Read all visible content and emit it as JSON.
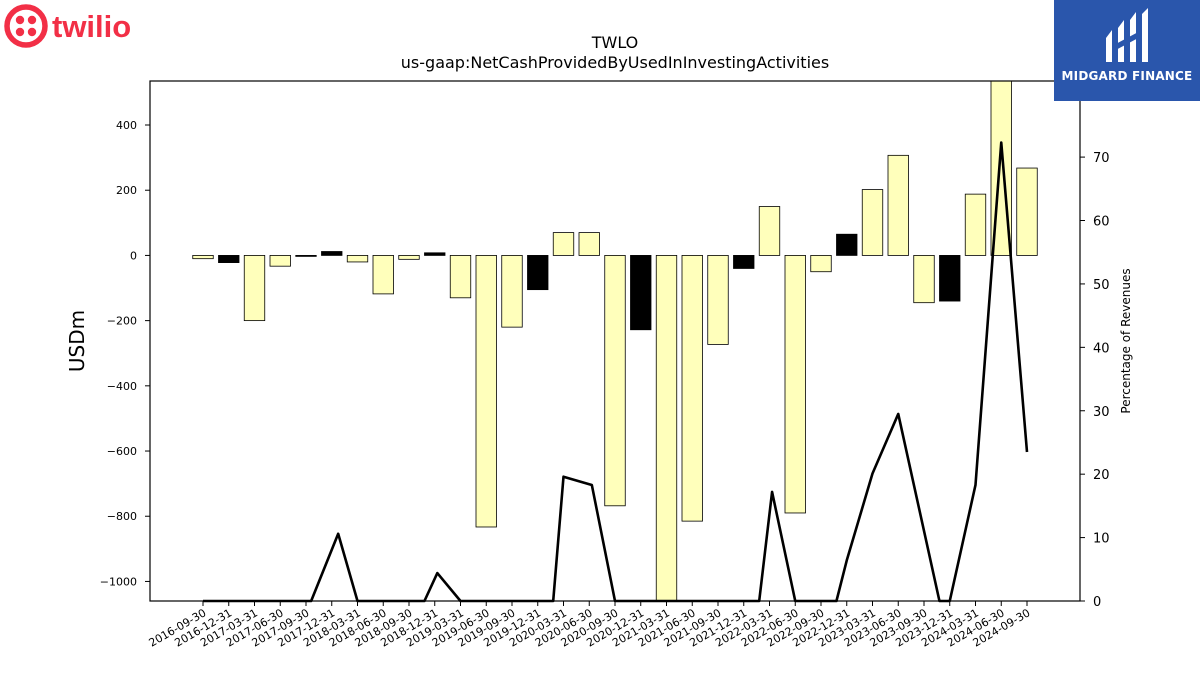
{
  "branding": {
    "left_logo_text": "twilio",
    "left_logo_color": "#f22f46",
    "right_logo_text": "MIDGARD FINANCE",
    "right_logo_bg": "#2a56ac"
  },
  "chart_data": {
    "type": "bar",
    "title": "TWLO",
    "subtitle": "us-gaap:NetCashProvidedByUsedInInvestingActivities",
    "ylabel": "USDm",
    "y2label": "Percentage of Revenues",
    "ylim": [
      -1060,
      535
    ],
    "y2lim": [
      0,
      82
    ],
    "yticks": [
      400,
      200,
      0,
      -200,
      -400,
      -600,
      -800,
      -1000
    ],
    "y2ticks": [
      0,
      10,
      20,
      30,
      40,
      50,
      60,
      70
    ],
    "ytick_labels": [
      "400",
      "200",
      "0",
      "−200",
      "−400",
      "−600",
      "−800",
      "−1000"
    ],
    "y2tick_labels": [
      "0",
      "10",
      "20",
      "30",
      "40",
      "50",
      "60",
      "70"
    ],
    "categories": [
      "2016-09-30",
      "2016-12-31",
      "2017-03-31",
      "2017-06-30",
      "2017-09-30",
      "2017-12-31",
      "2018-03-31",
      "2018-06-30",
      "2018-09-30",
      "2018-12-31",
      "2019-03-31",
      "2019-06-30",
      "2019-09-30",
      "2019-12-31",
      "2020-03-31",
      "2020-06-30",
      "2020-09-30",
      "2020-12-31",
      "2021-03-31",
      "2021-06-30",
      "2021-09-30",
      "2021-12-31",
      "2022-03-31",
      "2022-06-30",
      "2022-09-30",
      "2022-12-31",
      "2023-03-31",
      "2023-06-30",
      "2023-09-30",
      "2023-12-31",
      "2024-03-31",
      "2024-06-30",
      "2024-09-30"
    ],
    "series": [
      {
        "kind": "bar",
        "values": [
          -10,
          -22,
          -200,
          -33,
          -3,
          12,
          -20,
          -118,
          -12,
          8,
          -130,
          -833,
          -220,
          -105,
          70,
          70,
          -768,
          -228,
          -1080,
          -815,
          -273,
          -40,
          150,
          -790,
          -50,
          65,
          202,
          307,
          -145,
          -140,
          188,
          560,
          268
        ],
        "colors": [
          "yellow",
          "black",
          "yellow",
          "yellow",
          "black",
          "black",
          "yellow",
          "yellow",
          "yellow",
          "black",
          "yellow",
          "yellow",
          "yellow",
          "black",
          "yellow",
          "yellow",
          "yellow",
          "black",
          "yellow",
          "yellow",
          "yellow",
          "black",
          "yellow",
          "yellow",
          "yellow",
          "black",
          "yellow",
          "yellow",
          "yellow",
          "black",
          "yellow",
          "yellow",
          "yellow"
        ]
      },
      {
        "kind": "line",
        "axis": "right",
        "x_offsets": [
          0.0,
          0.0,
          0.0,
          0.0,
          0.2,
          0.25,
          0.0,
          0.0,
          0.6,
          0.1,
          0.0,
          0.0,
          0.0,
          0.6,
          0.0,
          0.1,
          0.0,
          0.0,
          0.0,
          0.0,
          0.0,
          0.6,
          0.1,
          0.0,
          0.6,
          0.0,
          0.0,
          0.0,
          0.6,
          0.0,
          0.0,
          0.0,
          0.0
        ],
        "values": [
          0,
          0,
          0,
          0,
          0,
          10.6,
          0,
          0,
          0,
          4.4,
          0,
          0,
          0,
          0,
          19.6,
          18.3,
          0,
          0,
          0,
          0,
          0,
          0,
          17.2,
          0,
          0,
          6.4,
          20.1,
          29.5,
          0,
          0,
          18.3,
          72.3,
          23.5
        ]
      }
    ],
    "bar_colors": {
      "yellow": "#ffffbb",
      "black": "#000000"
    },
    "grid": false
  }
}
